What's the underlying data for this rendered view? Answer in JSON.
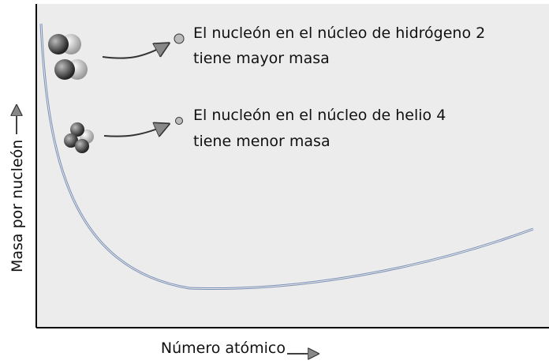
{
  "axes": {
    "x_label": "Número atómico",
    "y_label": "Masa por nucleón"
  },
  "annotations": [
    {
      "line1": "El nucleón en el núcleo de hidrógeno 2",
      "line2": "tiene mayor masa"
    },
    {
      "line1": "El nucleón en el núcleo de helio 4",
      "line2": "tiene menor masa"
    }
  ]
}
